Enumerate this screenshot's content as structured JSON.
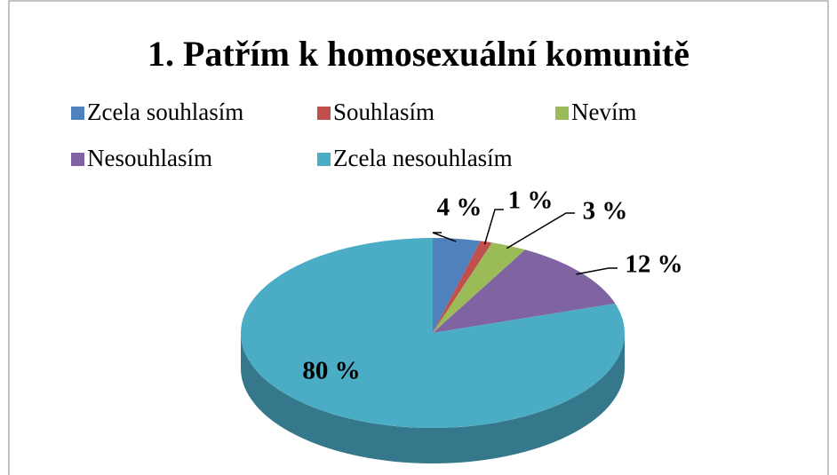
{
  "chart_data": {
    "type": "pie3d",
    "title": "1. Patřím k homosexuální komunitě",
    "categories": [
      "Zcela souhlasím",
      "Souhlasím",
      "Nevím",
      "Nesouhlasím",
      "Zcela nesouhlasím"
    ],
    "values": [
      4,
      1,
      3,
      12,
      80
    ],
    "value_labels": [
      "4 %",
      "1 %",
      "3 %",
      "12 %",
      "80 %"
    ],
    "colors": [
      "#4f81bd",
      "#c0504d",
      "#9bbb59",
      "#8064a2",
      "#4bacc6"
    ],
    "legend": "top"
  }
}
